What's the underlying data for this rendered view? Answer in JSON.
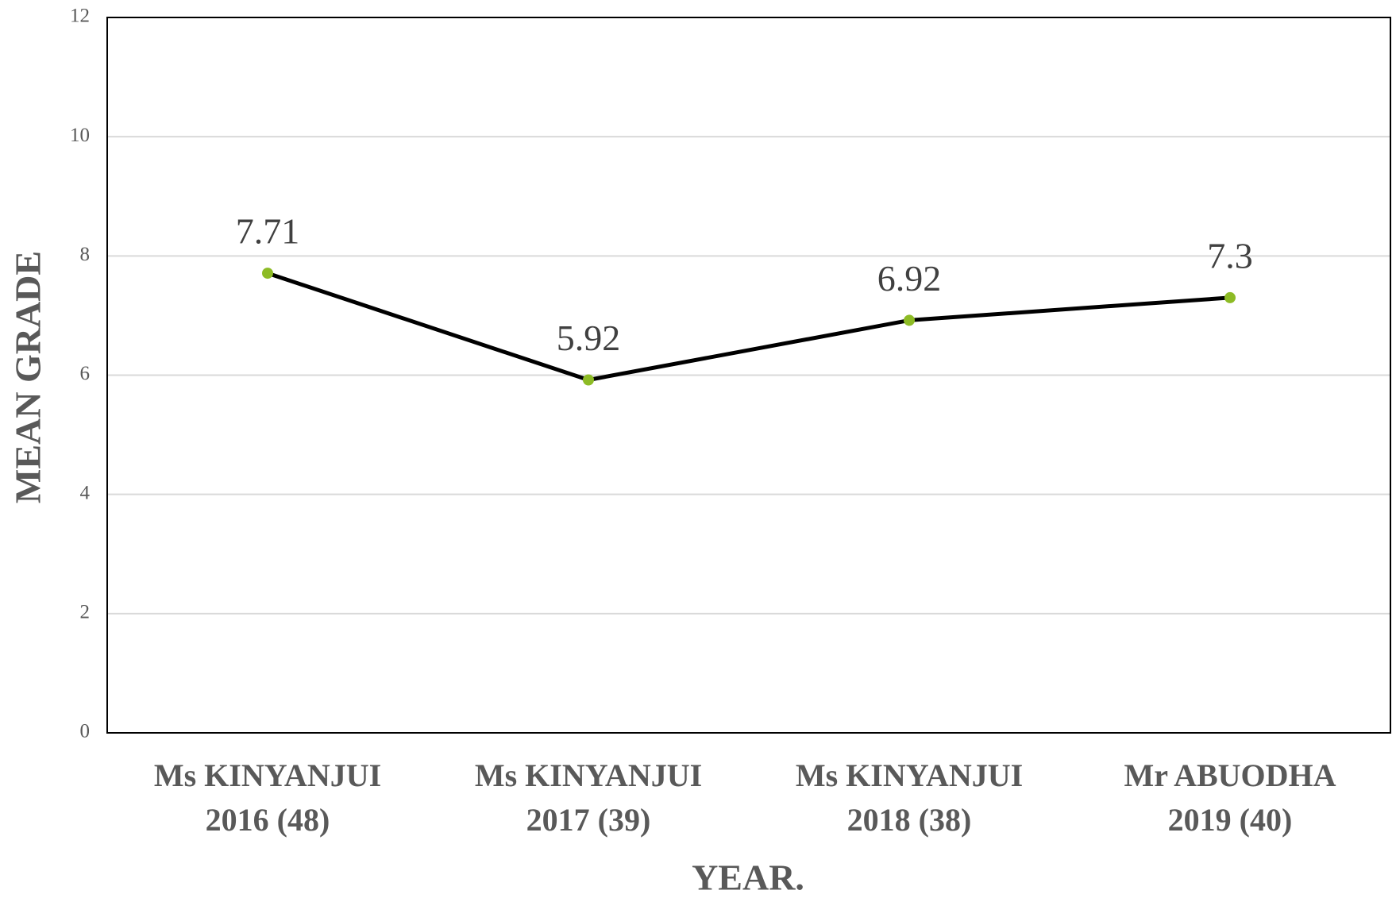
{
  "chart_data": {
    "type": "line",
    "categories": [
      [
        "Ms KINYANJUI",
        "2016 (48)"
      ],
      [
        "Ms KINYANJUI",
        "2017 (39)"
      ],
      [
        "Ms KINYANJUI",
        "2018 (38)"
      ],
      [
        "Mr ABUODHA",
        "2019 (40)"
      ]
    ],
    "series": [
      {
        "color": "#000000",
        "marker_color": "#8dbb25",
        "values": [
          7.71,
          5.92,
          6.92,
          7.3
        ]
      }
    ],
    "x_label": "YEAR.",
    "y_label": "MEAN GRADE",
    "ylim": [
      0,
      12
    ],
    "yticks": [
      0,
      2,
      4,
      6,
      8,
      10,
      12
    ],
    "grid": true
  }
}
